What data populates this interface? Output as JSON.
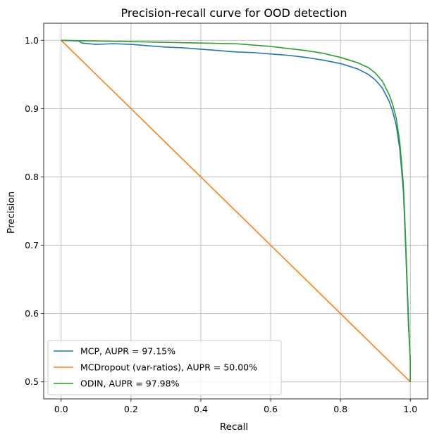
{
  "chart_data": {
    "type": "line",
    "title": "Precision-recall curve for OOD detection",
    "xlabel": "Recall",
    "ylabel": "Precision",
    "xlim": [
      -0.05,
      1.05
    ],
    "ylim": [
      0.475,
      1.025
    ],
    "xticks": [
      0.0,
      0.2,
      0.4,
      0.6,
      0.8,
      1.0
    ],
    "xtick_labels": [
      "0.0",
      "0.2",
      "0.4",
      "0.6",
      "0.8",
      "1.0"
    ],
    "yticks": [
      0.5,
      0.6,
      0.7,
      0.8,
      0.9,
      1.0
    ],
    "ytick_labels": [
      "0.5",
      "0.6",
      "0.7",
      "0.8",
      "0.9",
      "1.0"
    ],
    "grid": true,
    "legend_position": "lower-left",
    "series": [
      {
        "name": "MCP, AUPR = 97.15%",
        "color": "#1f77b4",
        "x": [
          0.0,
          0.05,
          0.06,
          0.1,
          0.15,
          0.2,
          0.25,
          0.3,
          0.35,
          0.4,
          0.45,
          0.5,
          0.55,
          0.6,
          0.65,
          0.7,
          0.75,
          0.8,
          0.85,
          0.88,
          0.9,
          0.92,
          0.94,
          0.95,
          0.96,
          0.97,
          0.98,
          0.985,
          0.99,
          0.995,
          1.0,
          1.0
        ],
        "y": [
          1.0,
          0.999,
          0.996,
          0.994,
          0.995,
          0.994,
          0.992,
          0.99,
          0.989,
          0.987,
          0.985,
          0.983,
          0.982,
          0.98,
          0.978,
          0.975,
          0.971,
          0.966,
          0.958,
          0.95,
          0.942,
          0.93,
          0.91,
          0.895,
          0.875,
          0.84,
          0.78,
          0.72,
          0.65,
          0.58,
          0.53,
          0.5
        ]
      },
      {
        "name": "MCDropout (var-ratios), AUPR = 50.00%",
        "color": "#ff7f0e",
        "x": [
          0.0,
          1.0
        ],
        "y": [
          1.0,
          0.5
        ]
      },
      {
        "name": "ODIN, AUPR = 97.98%",
        "color": "#2ca02c",
        "x": [
          0.0,
          0.1,
          0.2,
          0.3,
          0.4,
          0.5,
          0.55,
          0.6,
          0.65,
          0.7,
          0.75,
          0.8,
          0.85,
          0.88,
          0.9,
          0.92,
          0.94,
          0.95,
          0.96,
          0.97,
          0.98,
          0.985,
          0.99,
          0.995,
          1.0,
          1.0
        ],
        "y": [
          1.0,
          0.999,
          0.998,
          0.997,
          0.996,
          0.995,
          0.993,
          0.991,
          0.988,
          0.985,
          0.981,
          0.975,
          0.967,
          0.96,
          0.952,
          0.94,
          0.92,
          0.905,
          0.885,
          0.85,
          0.79,
          0.73,
          0.66,
          0.59,
          0.53,
          0.5
        ]
      }
    ]
  }
}
